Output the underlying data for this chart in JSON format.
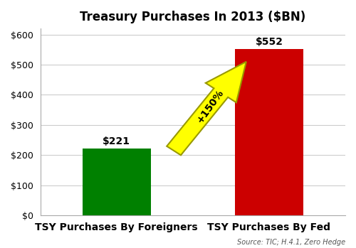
{
  "title": "Treasury Purchases In 2013 ($BN)",
  "categories": [
    "TSY Purchases By Foreigners",
    "TSY Purchases By Fed"
  ],
  "values": [
    221,
    552
  ],
  "bar_colors": [
    "#008000",
    "#cc0000"
  ],
  "bar_labels": [
    "$221",
    "$552"
  ],
  "ylim": [
    0,
    620
  ],
  "yticks": [
    0,
    100,
    200,
    300,
    400,
    500,
    600
  ],
  "ytick_labels": [
    "$0",
    "$100",
    "$200",
    "$300",
    "$400",
    "$500",
    "$600"
  ],
  "arrow_text": "+150%",
  "arrow_color": "#ffff00",
  "arrow_edge_color": "#999900",
  "source_text": "Source: TIC; H.4.1, Zero Hedge",
  "bg_color": "#ffffff",
  "title_fontsize": 12,
  "label_fontsize": 10,
  "tick_fontsize": 9,
  "source_fontsize": 7,
  "bar_label_fontsize": 10,
  "x_positions": [
    1,
    3
  ],
  "bar_width": 0.9,
  "xlim": [
    0,
    4
  ]
}
